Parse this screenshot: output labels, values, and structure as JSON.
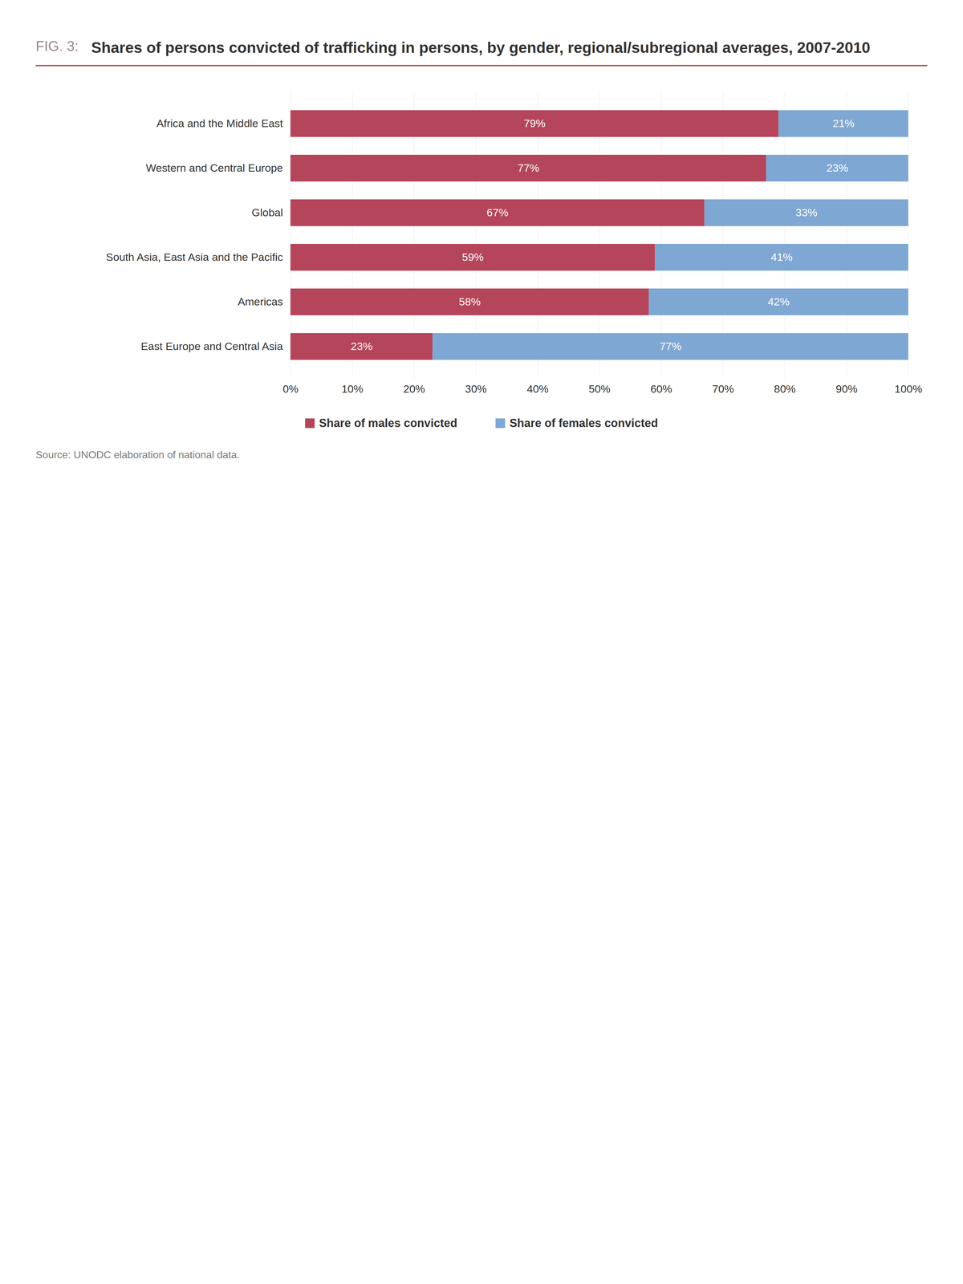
{
  "chart_data": {
    "type": "bar",
    "orientation": "horizontal",
    "stacked": true,
    "figure_label": "FIG. 3:",
    "title": "Shares of persons convicted of trafficking in persons, by gender, regional/subregional averages, 2007-2010",
    "caption": "Source: UNODC elaboration of national data.",
    "categories": [
      "Africa and the Middle East",
      "Western and Central Europe",
      "Global",
      "South Asia, East Asia and the Pacific",
      "Americas",
      "East Europe and Central Asia"
    ],
    "series": [
      {
        "name": "Share of males convicted",
        "color": "#b4455a",
        "values": [
          79,
          77,
          67,
          59,
          58,
          23
        ],
        "value_labels": [
          "79%",
          "77%",
          "67%",
          "59%",
          "58%",
          "23%"
        ]
      },
      {
        "name": "Share of females convicted",
        "color": "#7fa7d3",
        "values": [
          21,
          23,
          33,
          41,
          42,
          77
        ],
        "value_labels": [
          "21%",
          "23%",
          "33%",
          "41%",
          "42%",
          "77%"
        ]
      }
    ],
    "xlim": [
      0,
      100
    ],
    "xticks": [
      {
        "value": 0,
        "label": "0%"
      },
      {
        "value": 10,
        "label": "10%"
      },
      {
        "value": 20,
        "label": "20%"
      },
      {
        "value": 30,
        "label": "30%"
      },
      {
        "value": 40,
        "label": "40%"
      },
      {
        "value": 50,
        "label": "50%"
      },
      {
        "value": 60,
        "label": "60%"
      },
      {
        "value": 70,
        "label": "70%"
      },
      {
        "value": 80,
        "label": "80%"
      },
      {
        "value": 90,
        "label": "90%"
      },
      {
        "value": 100,
        "label": "100%"
      }
    ],
    "grid": true,
    "data_labels": true,
    "legend": "bottom"
  }
}
